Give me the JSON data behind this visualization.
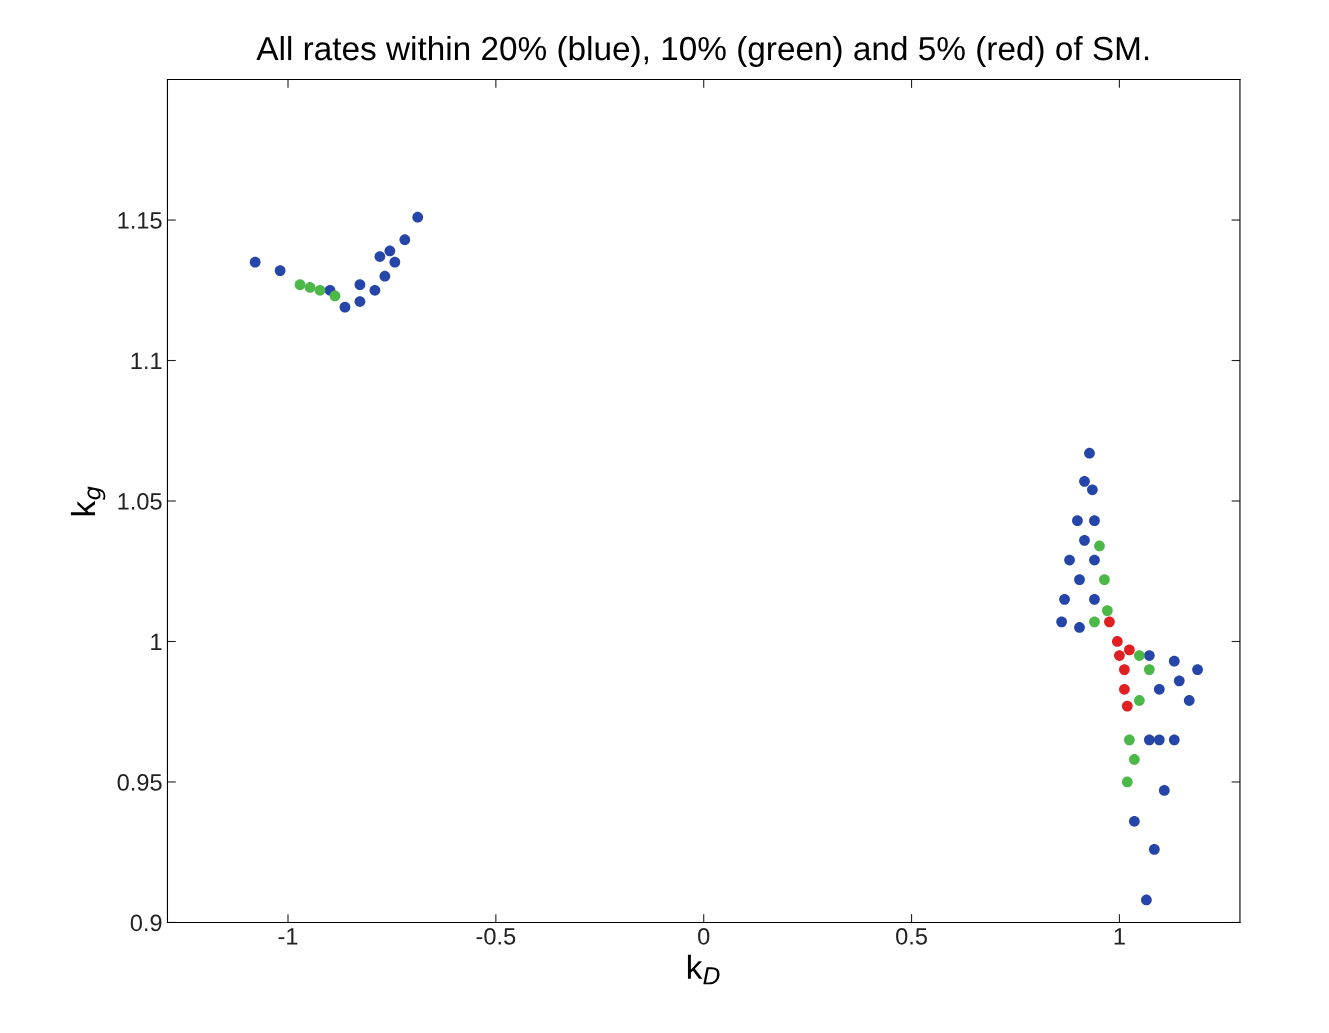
{
  "chart_data": {
    "type": "scatter",
    "title": "All rates within 20% (blue), 10% (green) and 5% (red) of SM.",
    "xlabel": "k$_{D}$",
    "ylabel": "k$_{g}$",
    "xlim": [
      -1.29,
      1.29
    ],
    "ylim": [
      0.9,
      1.2
    ],
    "xticks": [
      -1,
      -0.5,
      0,
      0.5,
      1
    ],
    "yticks": [
      0.9,
      0.95,
      1,
      1.05,
      1.1,
      1.15
    ],
    "grid": false,
    "marker": "circle",
    "series": [
      {
        "color": "#2546a8",
        "x": [
          -1.079,
          -1.019,
          -0.899,
          -0.863,
          -0.827,
          -0.791,
          -0.767,
          -0.743,
          -0.719,
          -0.688,
          -0.827,
          -0.779,
          -0.755,
          0.928,
          0.916,
          0.899,
          0.88,
          0.868,
          0.861,
          0.904,
          0.94,
          0.94,
          0.94,
          0.935,
          0.904,
          0.916,
          1.072,
          1.132,
          1.188,
          1.168,
          1.132,
          1.108,
          1.084,
          1.065,
          1.036,
          1.096,
          1.144,
          1.072,
          1.096
        ],
        "values": [
          1.135,
          1.132,
          1.125,
          1.119,
          1.121,
          1.125,
          1.13,
          1.135,
          1.143,
          1.151,
          1.127,
          1.137,
          1.139,
          1.067,
          1.057,
          1.043,
          1.029,
          1.015,
          1.007,
          1.005,
          1.015,
          1.029,
          1.043,
          1.054,
          1.022,
          1.036,
          0.995,
          0.993,
          0.99,
          0.979,
          0.965,
          0.947,
          0.926,
          0.908,
          0.936,
          0.983,
          0.986,
          0.965,
          0.965
        ]
      },
      {
        "color": "#4cb848",
        "x": [
          -0.971,
          -0.947,
          -0.923,
          -0.887,
          0.952,
          0.964,
          0.94,
          0.971,
          1.048,
          1.072,
          1.048,
          1.024,
          1.019,
          1.036
        ],
        "values": [
          1.127,
          1.126,
          1.125,
          1.123,
          1.034,
          1.022,
          1.007,
          1.011,
          0.995,
          0.99,
          0.979,
          0.965,
          0.95,
          0.958
        ]
      },
      {
        "color": "#e02020",
        "x": [
          0.976,
          0.995,
          1.024,
          1.012,
          1.012,
          1.019,
          1.0
        ],
        "values": [
          1.007,
          1.0,
          0.997,
          0.99,
          0.983,
          0.977,
          0.995
        ]
      }
    ]
  }
}
